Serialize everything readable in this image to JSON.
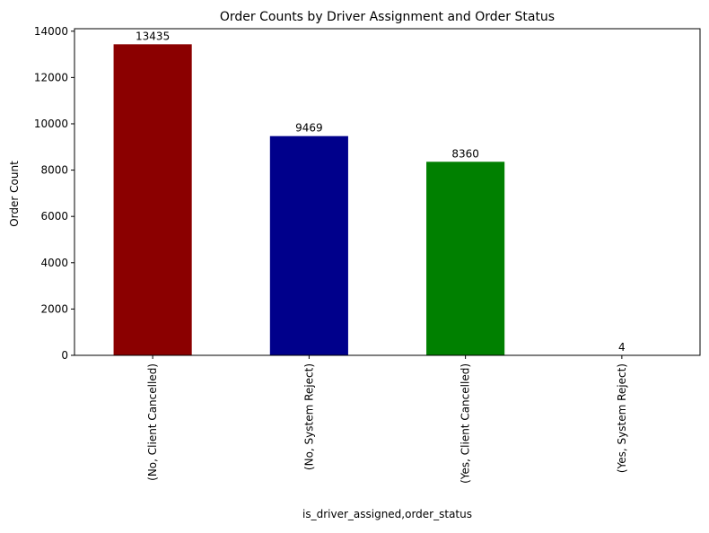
{
  "chart_data": {
    "type": "bar",
    "title": "Order Counts by Driver Assignment and Order Status",
    "xlabel": "is_driver_assigned,order_status",
    "ylabel": "Order Count",
    "categories": [
      "(No, Client Cancelled)",
      "(No, System Reject)",
      "(Yes, Client Cancelled)",
      "(Yes, System Reject)"
    ],
    "values": [
      13435,
      9469,
      8360,
      4
    ],
    "bar_colors": [
      "#8b0000",
      "#00008b",
      "#008000",
      "#ff8c00"
    ],
    "ylim": [
      0,
      14107
    ],
    "yticks": [
      0,
      2000,
      4000,
      6000,
      8000,
      10000,
      12000,
      14000
    ],
    "grid": false,
    "legend": "none"
  }
}
